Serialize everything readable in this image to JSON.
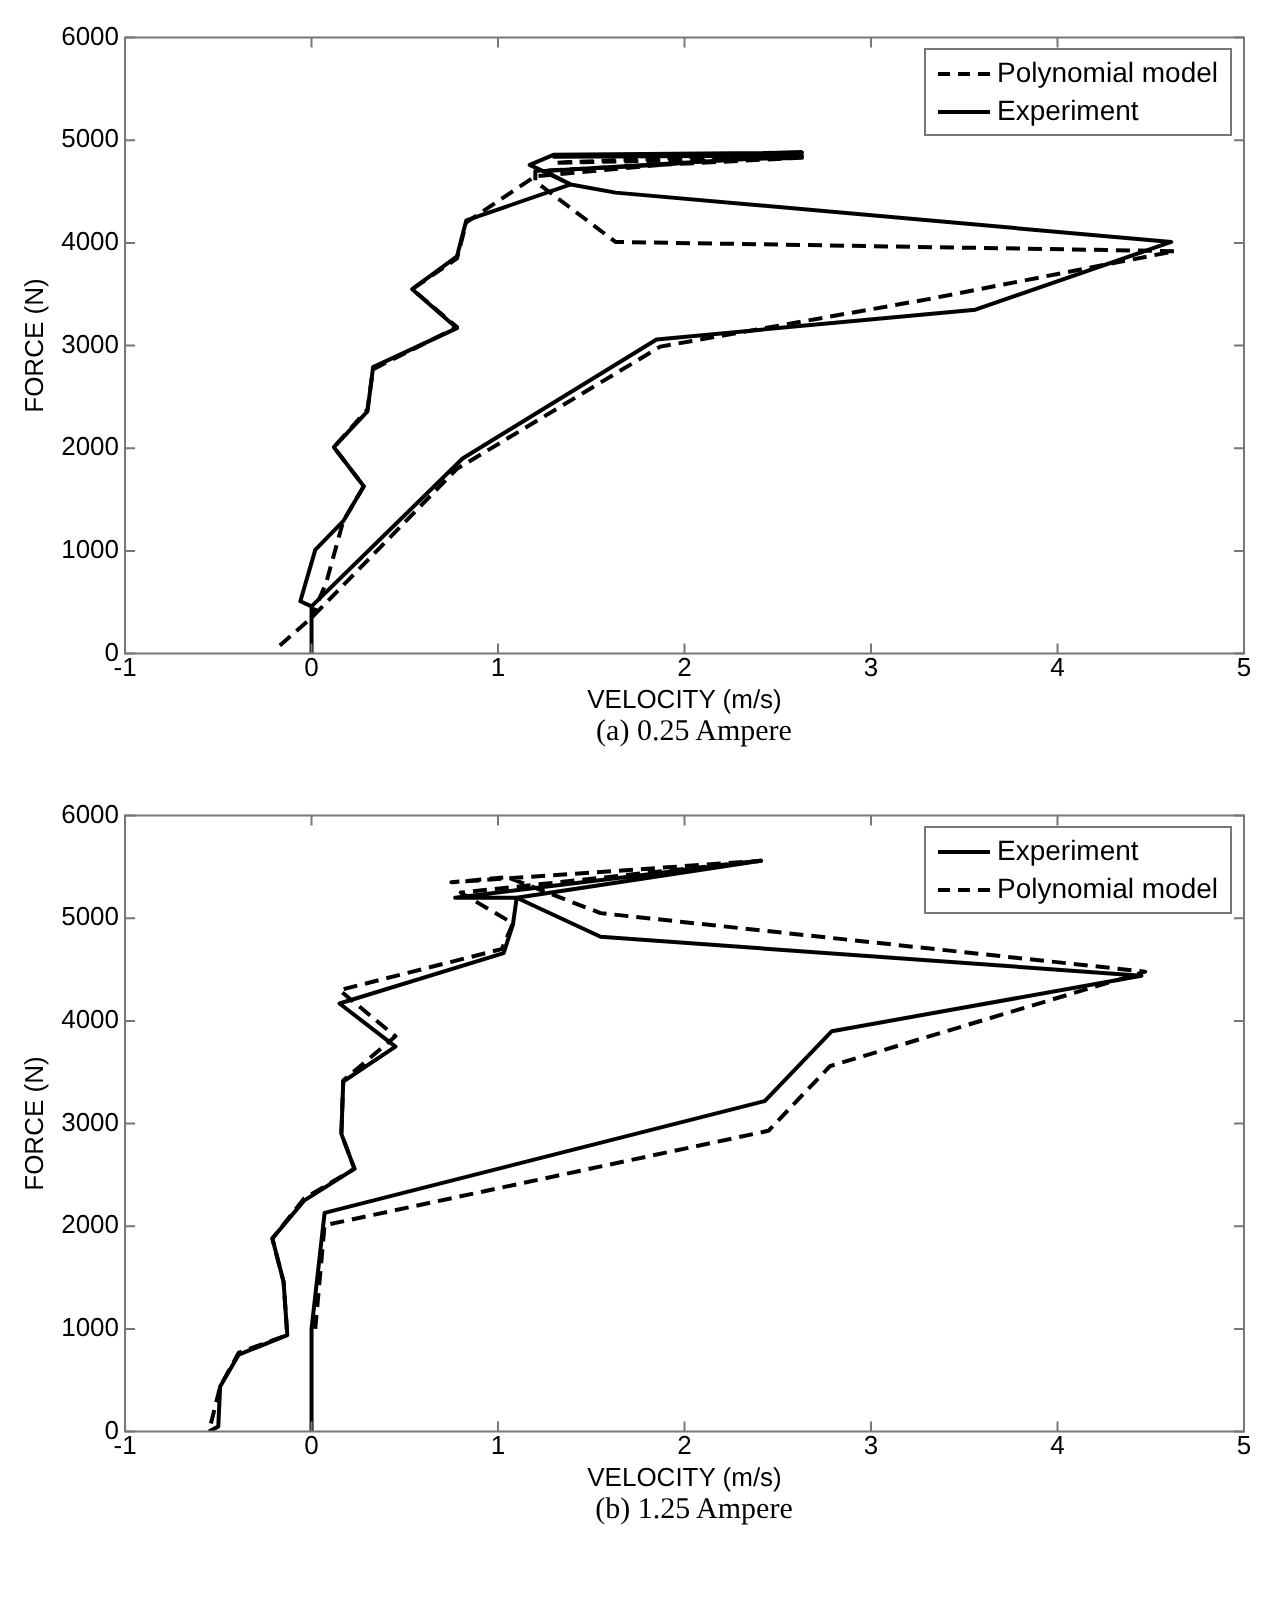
{
  "chart_data": [
    {
      "type": "line",
      "title": "(a) 0.25 Ampere",
      "xlabel": "VELOCITY (m/s)",
      "ylabel": "FORCE (N)",
      "xlim": [
        -1,
        5
      ],
      "xticks": [
        -1,
        0,
        1,
        2,
        3,
        4,
        5
      ],
      "ylim": [
        0,
        6000
      ],
      "yticks": [
        0,
        1000,
        2000,
        3000,
        4000,
        5000,
        6000
      ],
      "legend": "top right",
      "marker": "none",
      "series": [
        {
          "name": "Polynomial model",
          "color": "#000000",
          "line_style": "dashed",
          "x": [
            -0.17,
            0,
            0.78,
            1.87,
            3.3,
            4.63,
            1.63,
            1.2,
            1.2,
            2.63,
            1.3,
            2.6,
            1.2,
            0.83,
            0.78,
            0.54,
            0.78,
            0.33,
            0.3,
            0.12,
            0.28,
            0.17,
            0.08,
            0
          ],
          "values": [
            80,
            350,
            1800,
            2990,
            3450,
            3920,
            4010,
            4600,
            4700,
            4830,
            4780,
            4880,
            4650,
            4200,
            3850,
            3550,
            3180,
            2770,
            2380,
            2010,
            1630,
            1290,
            700,
            350
          ]
        },
        {
          "name": "Experiment",
          "color": "#000000",
          "line_style": "solid",
          "x": [
            0,
            0,
            0.81,
            1.85,
            3.56,
            4.61,
            1.63,
            1.39,
            1.17,
            1.3,
            2.63,
            1.3,
            2.63,
            1.25,
            1.39,
            0.83,
            0.78,
            0.54,
            0.78,
            0.33,
            0.3,
            0.12,
            0.28,
            0.17,
            0.02,
            -0.06,
            0
          ],
          "values": [
            0,
            460,
            1900,
            3060,
            3350,
            4010,
            4490,
            4570,
            4760,
            4860,
            4880,
            4840,
            4850,
            4700,
            4570,
            4220,
            3870,
            3550,
            3170,
            2790,
            2360,
            2010,
            1630,
            1290,
            1010,
            510,
            460
          ]
        }
      ]
    },
    {
      "type": "line",
      "title": "(b) 1.25 Ampere",
      "xlabel": "VELOCITY (m/s)",
      "ylabel": "FORCE (N)",
      "xlim": [
        -1,
        5
      ],
      "xticks": [
        -1,
        0,
        1,
        2,
        3,
        4,
        5
      ],
      "ylim": [
        0,
        6000
      ],
      "yticks": [
        0,
        1000,
        2000,
        3000,
        4000,
        5000,
        6000
      ],
      "legend": "top right",
      "marker": "none",
      "series": [
        {
          "name": "Experiment",
          "color": "#000000",
          "line_style": "solid",
          "x": [
            0,
            0,
            0.07,
            2.43,
            2.79,
            4.45,
            1.55,
            1.1,
            0.77,
            2.41,
            1.1,
            1.08,
            1.03,
            0.15,
            0.45,
            0.17,
            0.16,
            0.23,
            -0.04,
            -0.21,
            -0.15,
            -0.13,
            -0.39,
            -0.49,
            -0.5,
            -0.55
          ],
          "values": [
            0,
            1000,
            2130,
            3220,
            3900,
            4440,
            4820,
            5200,
            5200,
            5560,
            5200,
            4940,
            4660,
            4170,
            3750,
            3410,
            2900,
            2560,
            2250,
            1880,
            1460,
            940,
            750,
            440,
            50,
            0
          ]
        },
        {
          "name": "Polynomial model",
          "color": "#000000",
          "line_style": "dashed",
          "x": [
            0.02,
            0.07,
            2.45,
            2.78,
            4.47,
            1.55,
            1.05,
            0.75,
            2.41,
            0.8,
            1.08,
            1.02,
            0.15,
            0.45,
            0.17,
            0.16,
            0.23,
            -0.04,
            -0.21,
            -0.15,
            -0.13,
            -0.39,
            -0.49,
            -0.55
          ],
          "values": [
            1000,
            2010,
            2930,
            3560,
            4480,
            5050,
            5400,
            5350,
            5560,
            5250,
            4950,
            4700,
            4300,
            3850,
            3420,
            2900,
            2560,
            2270,
            1880,
            1460,
            940,
            770,
            440,
            0
          ]
        }
      ]
    }
  ]
}
